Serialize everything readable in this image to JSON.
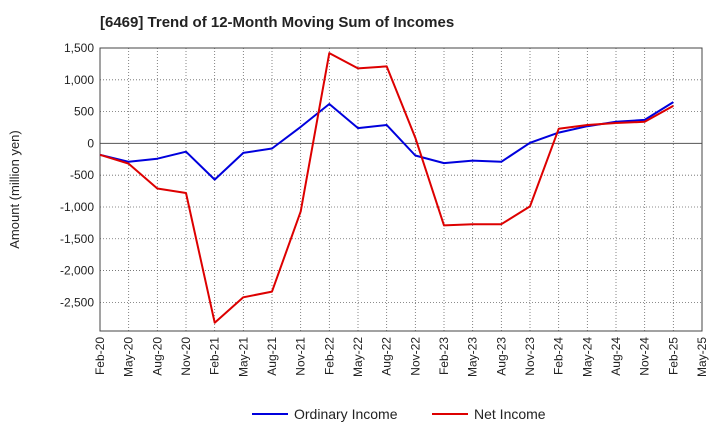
{
  "chart_data": {
    "type": "line",
    "title": "[6469]  Trend of 12-Month Moving Sum of Incomes",
    "xlabel": "",
    "ylabel": "Amount (million yen)",
    "ylim": [
      -2950,
      1500
    ],
    "yticks": [
      1500,
      1000,
      500,
      0,
      -500,
      -1000,
      -1500,
      -2000,
      -2500
    ],
    "ytick_labels": [
      "1,500",
      "1,000",
      "500",
      "0",
      "-500",
      "-1,000",
      "-1,500",
      "-2,000",
      "-2,500"
    ],
    "categories": [
      "Feb-20",
      "May-20",
      "Aug-20",
      "Nov-20",
      "Feb-21",
      "May-21",
      "Aug-21",
      "Nov-21",
      "Feb-22",
      "May-22",
      "Aug-22",
      "Nov-22",
      "Feb-23",
      "May-23",
      "Aug-23",
      "Nov-23",
      "Feb-24",
      "May-24",
      "Aug-24",
      "Nov-24",
      "Feb-25",
      "May-25"
    ],
    "grid": true,
    "legend_position": "bottom",
    "series": [
      {
        "name": "Ordinary Income",
        "color": "#0000dd",
        "values": [
          -180,
          -290,
          -240,
          -130,
          -570,
          -150,
          -80,
          260,
          620,
          240,
          290,
          -190,
          -310,
          -270,
          -290,
          10,
          170,
          270,
          340,
          370,
          650,
          null
        ]
      },
      {
        "name": "Net Income",
        "color": "#dd0000",
        "values": [
          -180,
          -320,
          -710,
          -780,
          -2820,
          -2420,
          -2330,
          -1070,
          1420,
          1180,
          1210,
          90,
          -1290,
          -1270,
          -1270,
          -990,
          230,
          290,
          320,
          340,
          590,
          null
        ]
      }
    ]
  }
}
